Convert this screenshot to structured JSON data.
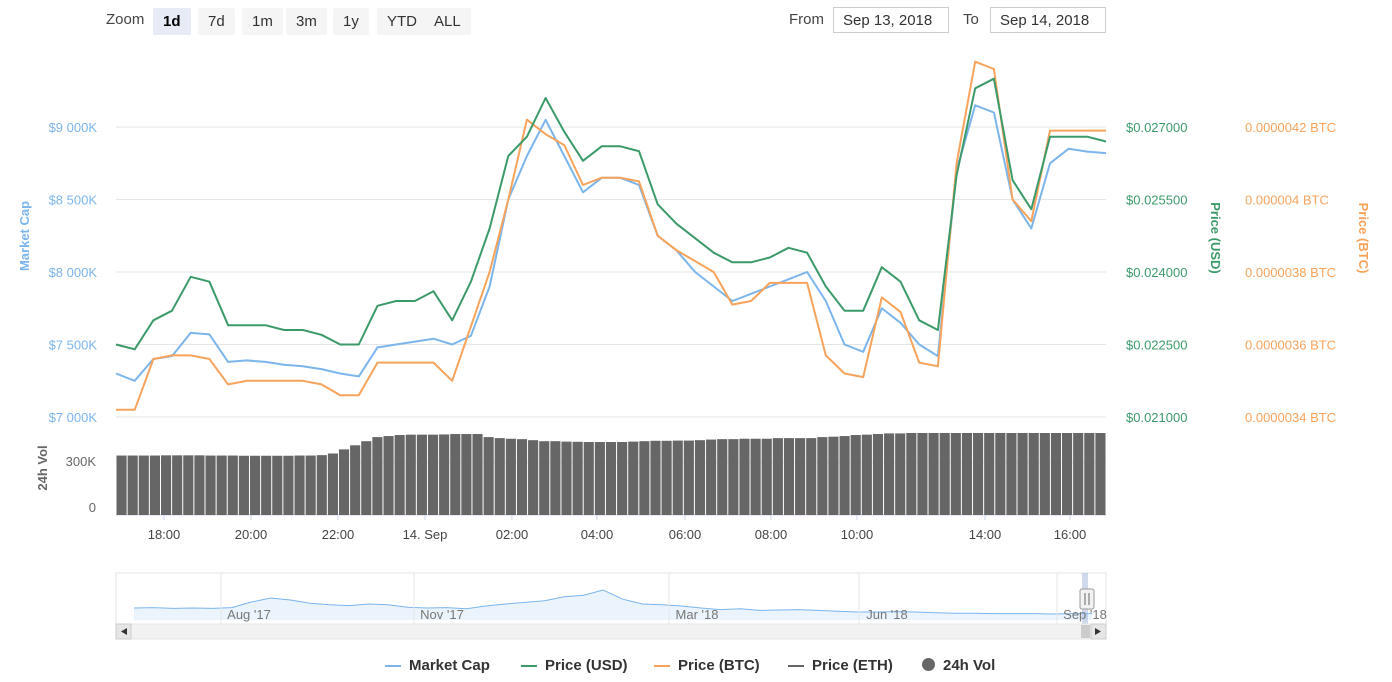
{
  "toolbar": {
    "zoom_label": "Zoom",
    "zoom_buttons": [
      "1d",
      "7d",
      "1m",
      "3m",
      "1y",
      "YTD",
      "ALL"
    ],
    "active_zoom": "1d",
    "from_label": "From",
    "from_value": "Sep 13, 2018",
    "to_label": "To",
    "to_value": "Sep 14, 2018"
  },
  "colors": {
    "market_cap": "#7cb5ec",
    "price_usd": "#3c9a6a",
    "price_btc": "#f7a35c",
    "price_eth": "#666666",
    "volume": "#666666"
  },
  "chart_data": [
    {
      "type": "line",
      "x": [
        "17:00",
        "17:30",
        "18:00",
        "18:30",
        "19:00",
        "19:30",
        "20:00",
        "20:30",
        "21:00",
        "21:30",
        "22:00",
        "22:30",
        "23:00",
        "23:30",
        "00:00",
        "00:30",
        "01:00",
        "01:30",
        "02:00",
        "02:15",
        "02:30",
        "02:45",
        "03:00",
        "03:15",
        "03:30",
        "04:00",
        "04:30",
        "05:00",
        "05:30",
        "06:00",
        "06:30",
        "07:00",
        "07:30",
        "08:00",
        "08:30",
        "09:00",
        "09:30",
        "10:00",
        "10:30",
        "11:00",
        "11:30",
        "12:00",
        "12:30",
        "13:00",
        "13:15",
        "13:30",
        "13:45",
        "14:00",
        "14:30",
        "15:00",
        "15:30",
        "16:00",
        "16:30",
        "17:00"
      ],
      "series": [
        {
          "name": "Market Cap",
          "axis": "Market Cap",
          "values": [
            7300,
            7250,
            7400,
            7420,
            7580,
            7570,
            7380,
            7390,
            7380,
            7360,
            7350,
            7330,
            7300,
            7280,
            7480,
            7500,
            7520,
            7540,
            7500,
            7560,
            7900,
            8500,
            8800,
            9050,
            8800,
            8550,
            8650,
            8650,
            8600,
            8250,
            8150,
            8000,
            7900,
            7800,
            7850,
            7900,
            7950,
            8000,
            7800,
            7500,
            7450,
            7750,
            7650,
            7500,
            7420,
            8700,
            9150,
            9100,
            8500,
            8300,
            8750,
            8850,
            8830,
            8820
          ]
        },
        {
          "name": "Price (USD)",
          "axis": "Price (USD)",
          "values": [
            0.0225,
            0.0224,
            0.023,
            0.0232,
            0.0239,
            0.0238,
            0.0229,
            0.0229,
            0.0229,
            0.0228,
            0.0228,
            0.0227,
            0.0225,
            0.0225,
            0.0233,
            0.0234,
            0.0234,
            0.0236,
            0.023,
            0.0238,
            0.0249,
            0.0264,
            0.0268,
            0.0276,
            0.0269,
            0.0263,
            0.0266,
            0.0266,
            0.0265,
            0.0254,
            0.025,
            0.0247,
            0.0244,
            0.0242,
            0.0242,
            0.0243,
            0.0245,
            0.0244,
            0.0237,
            0.0232,
            0.0232,
            0.0241,
            0.0238,
            0.023,
            0.0228,
            0.026,
            0.0278,
            0.028,
            0.0259,
            0.0253,
            0.0268,
            0.0268,
            0.0268,
            0.0267
          ]
        }
      ],
      "ylabel": "Market Cap"
    },
    {
      "type": "line",
      "x": [
        "17:00",
        "17:30",
        "18:00",
        "18:30",
        "19:00",
        "19:30",
        "20:00",
        "20:30",
        "21:00",
        "21:30",
        "22:00",
        "22:30",
        "23:00",
        "23:30",
        "00:00",
        "00:30",
        "01:00",
        "01:30",
        "02:00",
        "02:15",
        "02:30",
        "02:45",
        "03:00",
        "03:15",
        "03:30",
        "04:00",
        "04:30",
        "05:00",
        "05:30",
        "06:00",
        "06:30",
        "07:00",
        "07:30",
        "08:00",
        "08:30",
        "09:00",
        "09:30",
        "10:00",
        "10:30",
        "11:00",
        "11:30",
        "12:00",
        "12:30",
        "13:00",
        "13:15",
        "13:30",
        "13:45",
        "14:00",
        "14:30",
        "15:00",
        "15:30",
        "16:00",
        "16:30",
        "17:00"
      ],
      "series": [
        {
          "name": "Price (BTC)",
          "axis": "Price (BTC)",
          "values": [
            3.42e-06,
            3.42e-06,
            3.56e-06,
            3.57e-06,
            3.57e-06,
            3.56e-06,
            3.49e-06,
            3.5e-06,
            3.5e-06,
            3.5e-06,
            3.5e-06,
            3.49e-06,
            3.46e-06,
            3.46e-06,
            3.55e-06,
            3.55e-06,
            3.55e-06,
            3.55e-06,
            3.5e-06,
            3.65e-06,
            3.8e-06,
            4e-06,
            4.22e-06,
            4.18e-06,
            4.15e-06,
            4.04e-06,
            4.06e-06,
            4.06e-06,
            4.05e-06,
            3.9e-06,
            3.86e-06,
            3.83e-06,
            3.8e-06,
            3.71e-06,
            3.72e-06,
            3.77e-06,
            3.77e-06,
            3.77e-06,
            3.57e-06,
            3.52e-06,
            3.51e-06,
            3.73e-06,
            3.69e-06,
            3.55e-06,
            3.54e-06,
            4.1e-06,
            4.38e-06,
            4.36e-06,
            4e-06,
            3.94e-06,
            4.19e-06,
            4.19e-06,
            4.19e-06,
            4.19e-06
          ]
        }
      ],
      "ylabel": "Price (BTC)"
    },
    {
      "type": "bar",
      "name": "24h Vol",
      "ylabel": "24h Vol",
      "ylim": [
        0,
        400
      ],
      "values": [
        290,
        290,
        290,
        290,
        291,
        291,
        291,
        291,
        290,
        290,
        290,
        289,
        289,
        289,
        289,
        289,
        290,
        290,
        292,
        300,
        320,
        340,
        360,
        380,
        385,
        390,
        392,
        392,
        392,
        393,
        395,
        395,
        395,
        380,
        375,
        372,
        370,
        365,
        360,
        360,
        358,
        357,
        356,
        356,
        356,
        356,
        358,
        360,
        362,
        362,
        363,
        363,
        365,
        368,
        370,
        370,
        372,
        372,
        372,
        375,
        375,
        375,
        375,
        380,
        382,
        385,
        390,
        392,
        395,
        398,
        398,
        400,
        400,
        400,
        400,
        400,
        400,
        400,
        400,
        400,
        400,
        400,
        400,
        400,
        400,
        400,
        400,
        400,
        400
      ]
    }
  ],
  "axes": {
    "market_cap_ticks": [
      "$9 000K",
      "$8 500K",
      "$8 000K",
      "$7 500K",
      "$7 000K"
    ],
    "market_cap_title": "Market Cap",
    "usd_ticks": [
      "$0.027000",
      "$0.025500",
      "$0.024000",
      "$0.022500",
      "$0.021000"
    ],
    "usd_title": "Price (USD)",
    "btc_ticks": [
      "0.0000042 BTC",
      "0.000004 BTC",
      "0.0000038 BTC",
      "0.0000036 BTC",
      "0.0000034 BTC"
    ],
    "btc_title": "Price (BTC)",
    "vol_ticks": [
      "300K",
      "0"
    ],
    "vol_title": "24h Vol",
    "x_ticks": [
      "18:00",
      "20:00",
      "22:00",
      "14. Sep",
      "02:00",
      "04:00",
      "06:00",
      "08:00",
      "10:00",
      "14:00",
      "16:00"
    ]
  },
  "navigator": {
    "ticks": [
      "Aug '17",
      "Nov '17",
      "Mar '18",
      "Jun '18",
      "Sep '18"
    ],
    "values": [
      0.3,
      0.31,
      0.29,
      0.3,
      0.29,
      0.31,
      0.45,
      0.55,
      0.5,
      0.42,
      0.38,
      0.36,
      0.4,
      0.38,
      0.32,
      0.3,
      0.31,
      0.28,
      0.35,
      0.4,
      0.44,
      0.48,
      0.58,
      0.62,
      0.75,
      0.52,
      0.4,
      0.38,
      0.35,
      0.3,
      0.26,
      0.28,
      0.24,
      0.25,
      0.26,
      0.24,
      0.22,
      0.2,
      0.2,
      0.21,
      0.2,
      0.18,
      0.17,
      0.17,
      0.16,
      0.16,
      0.16,
      0.15,
      0.16,
      0.16
    ]
  },
  "legend": [
    {
      "label": "Market Cap",
      "kind": "line",
      "color": "#7cb5ec"
    },
    {
      "label": "Price (USD)",
      "kind": "line",
      "color": "#3c9a6a"
    },
    {
      "label": "Price (BTC)",
      "kind": "line",
      "color": "#f7a35c"
    },
    {
      "label": "Price (ETH)",
      "kind": "line",
      "color": "#666666"
    },
    {
      "label": "24h Vol",
      "kind": "dot",
      "color": "#666666"
    }
  ]
}
